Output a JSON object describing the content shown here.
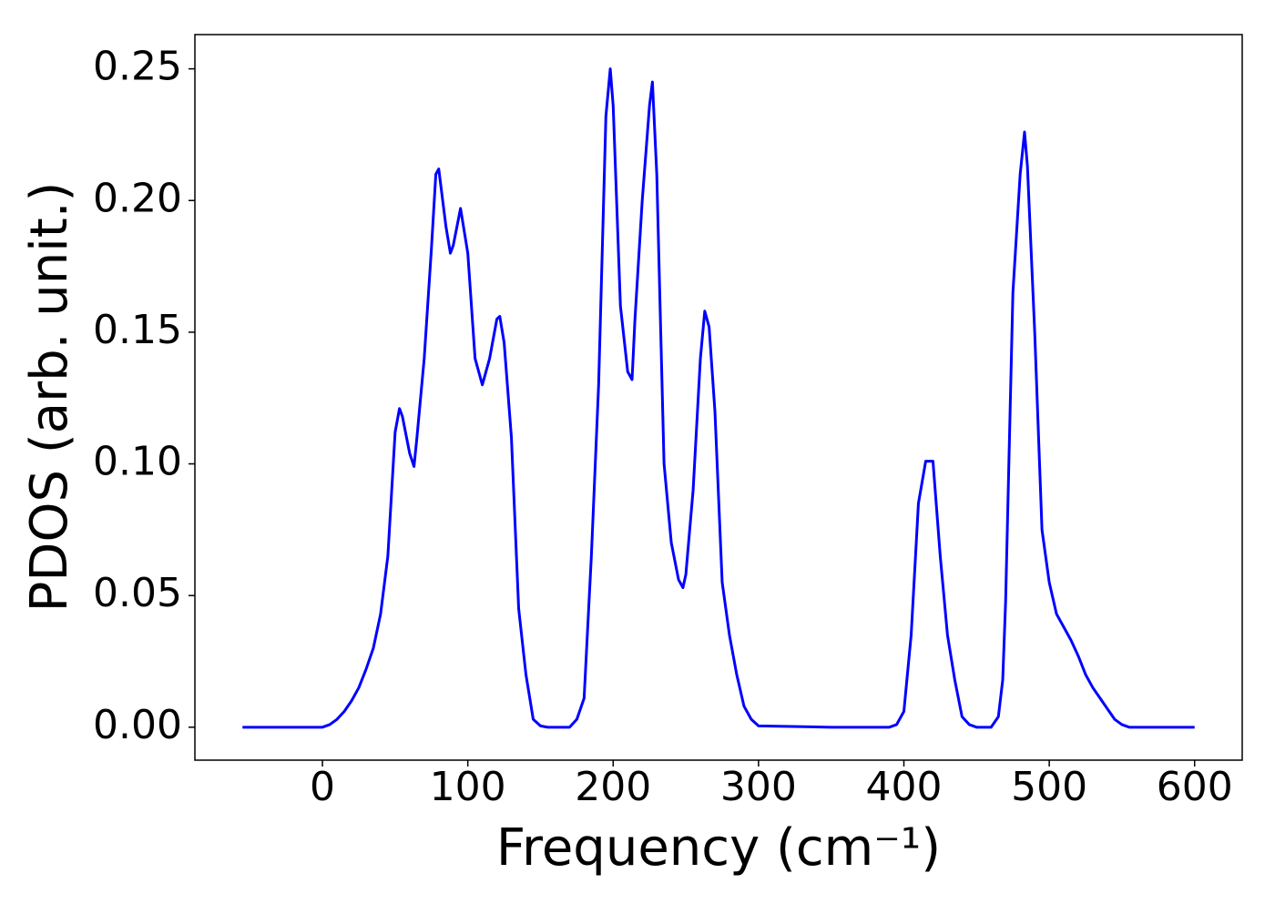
{
  "chart_data": {
    "type": "line",
    "xlabel": "Frequency (cm⁻¹)",
    "ylabel": "PDOS (arb. unit.)",
    "x": [
      -55,
      -20,
      0,
      5,
      10,
      15,
      20,
      25,
      30,
      35,
      40,
      45,
      50,
      53,
      55,
      60,
      63,
      65,
      70,
      75,
      78,
      80,
      85,
      88,
      90,
      95,
      100,
      105,
      110,
      115,
      120,
      122,
      125,
      130,
      135,
      140,
      145,
      150,
      155,
      170,
      175,
      180,
      185,
      190,
      195,
      198,
      200,
      205,
      210,
      213,
      215,
      220,
      225,
      227,
      230,
      235,
      240,
      245,
      248,
      250,
      255,
      260,
      263,
      266,
      270,
      275,
      280,
      285,
      290,
      295,
      300,
      350,
      390,
      395,
      400,
      405,
      410,
      415,
      420,
      425,
      430,
      435,
      440,
      445,
      450,
      460,
      465,
      468,
      470,
      475,
      480,
      483,
      485,
      490,
      495,
      500,
      505,
      510,
      515,
      520,
      525,
      530,
      535,
      540,
      545,
      550,
      555,
      600
    ],
    "series": [
      {
        "name": "PDOS",
        "color": "#0000ff",
        "values": [
          0,
          0,
          0,
          0.001,
          0.003,
          0.006,
          0.01,
          0.015,
          0.022,
          0.03,
          0.043,
          0.065,
          0.112,
          0.121,
          0.118,
          0.104,
          0.099,
          0.11,
          0.14,
          0.182,
          0.21,
          0.212,
          0.19,
          0.18,
          0.183,
          0.197,
          0.18,
          0.14,
          0.13,
          0.14,
          0.155,
          0.156,
          0.146,
          0.11,
          0.045,
          0.02,
          0.003,
          0.0005,
          0,
          0,
          0.003,
          0.011,
          0.065,
          0.13,
          0.232,
          0.25,
          0.236,
          0.16,
          0.135,
          0.132,
          0.155,
          0.2,
          0.236,
          0.245,
          0.21,
          0.1,
          0.07,
          0.056,
          0.053,
          0.058,
          0.09,
          0.14,
          0.158,
          0.152,
          0.12,
          0.055,
          0.035,
          0.02,
          0.008,
          0.003,
          0.0005,
          0,
          0,
          0.001,
          0.006,
          0.035,
          0.085,
          0.101,
          0.101,
          0.065,
          0.035,
          0.018,
          0.004,
          0.001,
          0,
          0,
          0.004,
          0.018,
          0.048,
          0.165,
          0.21,
          0.226,
          0.213,
          0.15,
          0.075,
          0.055,
          0.043,
          0.038,
          0.033,
          0.027,
          0.02,
          0.015,
          0.011,
          0.007,
          0.003,
          0.001,
          0,
          0
        ]
      }
    ],
    "xlim": [
      -87.75,
      632.75
    ],
    "ylim": [
      -0.0125,
      0.263
    ],
    "xticks": [
      0,
      100,
      200,
      300,
      400,
      500,
      600
    ],
    "yticks": [
      {
        "value": 0,
        "label": "0.00"
      },
      {
        "value": 0.05,
        "label": "0.05"
      },
      {
        "value": 0.1,
        "label": "0.10"
      },
      {
        "value": 0.15,
        "label": "0.15"
      },
      {
        "value": 0.2,
        "label": "0.20"
      },
      {
        "value": 0.25,
        "label": "0.25"
      }
    ]
  }
}
